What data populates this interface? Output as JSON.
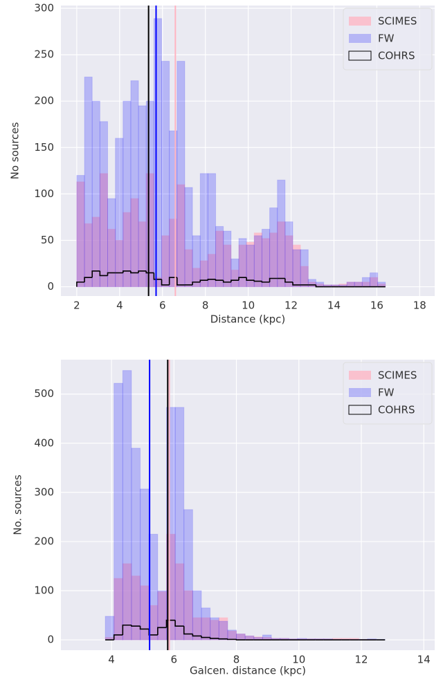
{
  "chart_data": [
    {
      "type": "histogram",
      "xlabel": "Distance (kpc)",
      "ylabel": "No sources",
      "bins": [
        2.0,
        2.36,
        2.72,
        3.08,
        3.44,
        3.8,
        4.16,
        4.52,
        4.88,
        5.24,
        5.6,
        5.96,
        6.32,
        6.68,
        7.04,
        7.4,
        7.76,
        8.12,
        8.48,
        8.84,
        9.2,
        9.56,
        9.92,
        10.28,
        10.64,
        11.0,
        11.36,
        11.72,
        12.08,
        12.44,
        12.8,
        13.16,
        13.52,
        13.88,
        14.24,
        14.6,
        14.96,
        15.32,
        15.68,
        16.04,
        16.4
      ],
      "series": [
        {
          "name": "SCIMES",
          "color": "#ffb3c1",
          "histtype": "stepfilled",
          "median": 6.6,
          "values": [
            113,
            68,
            75,
            122,
            62,
            50,
            80,
            95,
            70,
            122,
            10,
            55,
            73,
            110,
            40,
            20,
            28,
            35,
            60,
            45,
            18,
            45,
            48,
            58,
            52,
            58,
            70,
            55,
            45,
            22,
            5,
            3,
            2,
            2,
            3,
            5,
            5,
            5,
            10,
            3
          ]
        },
        {
          "name": "FW",
          "color": "#0000ff",
          "histtype": "stepfilled",
          "median": 5.7,
          "values": [
            120,
            226,
            200,
            178,
            95,
            160,
            200,
            222,
            195,
            200,
            289,
            243,
            168,
            243,
            107,
            55,
            122,
            122,
            65,
            60,
            30,
            52,
            45,
            55,
            62,
            85,
            115,
            70,
            40,
            40,
            8,
            5,
            2,
            2,
            2,
            5,
            5,
            10,
            15,
            5
          ]
        },
        {
          "name": "COHRS",
          "color": "#000000",
          "histtype": "step",
          "median": 5.35,
          "values": [
            5,
            10,
            17,
            12,
            15,
            15,
            17,
            15,
            17,
            15,
            8,
            2,
            10,
            2,
            2,
            5,
            7,
            8,
            7,
            5,
            7,
            10,
            7,
            6,
            5,
            9,
            9,
            5,
            2,
            2,
            2,
            0,
            0,
            0,
            0,
            0,
            0,
            0,
            0,
            0
          ]
        }
      ],
      "xlim": [
        1.26,
        18.7
      ],
      "ylim": [
        -10,
        303
      ],
      "xticks": [
        2,
        4,
        6,
        8,
        10,
        12,
        14,
        16,
        18
      ],
      "yticks": [
        0,
        50,
        100,
        150,
        200,
        250,
        300
      ],
      "grid": true,
      "legend": "upper right"
    },
    {
      "type": "histogram",
      "xlabel": "Galcen. distance (kpc)",
      "ylabel": "No. sources",
      "bins": [
        3.8,
        4.08,
        4.36,
        4.64,
        4.92,
        5.2,
        5.48,
        5.76,
        6.04,
        6.32,
        6.6,
        6.88,
        7.16,
        7.44,
        7.72,
        8.0,
        8.28,
        8.56,
        8.84,
        9.12,
        9.4,
        9.68,
        9.96,
        10.24,
        10.52,
        10.8,
        11.08,
        11.36,
        11.64,
        11.92,
        12.2,
        12.48,
        12.76
      ],
      "series": [
        {
          "name": "SCIMES",
          "color": "#ffb3c1",
          "histtype": "stepfilled",
          "median": 5.85,
          "values": [
            5,
            125,
            155,
            130,
            110,
            70,
            98,
            215,
            155,
            100,
            45,
            45,
            40,
            45,
            18,
            12,
            8,
            6,
            5,
            3,
            3,
            2,
            2,
            2,
            2,
            2,
            3,
            3,
            3,
            1,
            1,
            0
          ]
        },
        {
          "name": "FW",
          "color": "#0000ff",
          "histtype": "stepfilled",
          "median": 5.22,
          "values": [
            48,
            522,
            548,
            390,
            307,
            215,
            100,
            473,
            473,
            265,
            100,
            65,
            45,
            38,
            20,
            12,
            8,
            5,
            10,
            3,
            3,
            2,
            3,
            2,
            2,
            2,
            1,
            1,
            1,
            1,
            2,
            1
          ]
        },
        {
          "name": "COHRS",
          "color": "#000000",
          "histtype": "step",
          "median": 5.8,
          "values": [
            0,
            10,
            30,
            28,
            22,
            10,
            25,
            40,
            28,
            12,
            8,
            5,
            3,
            2,
            1,
            0,
            0,
            0,
            0,
            0,
            0,
            0,
            0,
            0,
            0,
            0,
            0,
            0,
            0,
            0,
            0,
            0
          ]
        }
      ],
      "xlim": [
        2.38,
        14.35
      ],
      "ylim": [
        -21,
        570
      ],
      "xticks": [
        4,
        6,
        8,
        10,
        12,
        14
      ],
      "yticks": [
        0,
        100,
        200,
        300,
        400,
        500
      ],
      "grid": true,
      "legend": "upper right"
    }
  ]
}
